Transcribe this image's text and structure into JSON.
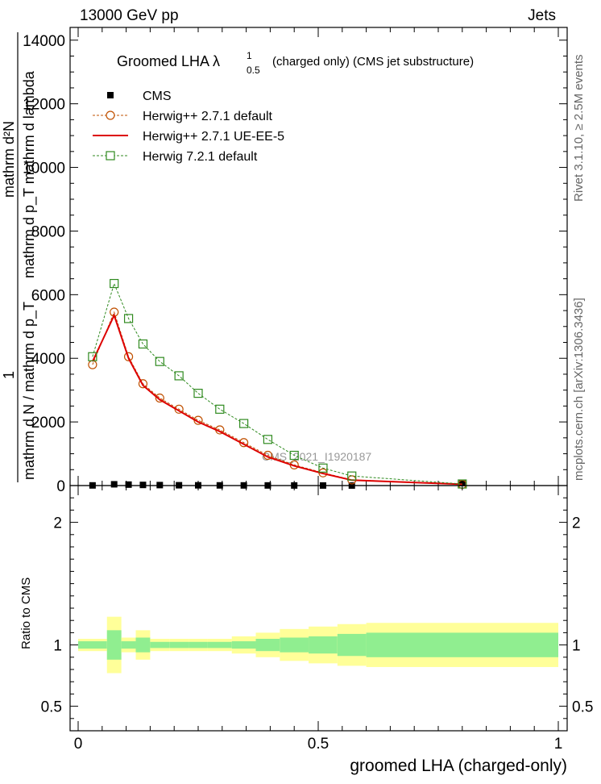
{
  "header": {
    "left": "13000 GeV pp",
    "right": "Jets"
  },
  "side_labels": {
    "rivet": "Rivet 3.1.10, ≥ 2.5M events",
    "mcplots": "mcplots.cern.ch [arXiv:1306.3436]"
  },
  "chart_data": [
    {
      "type": "line",
      "title": "Groomed LHA  λ",
      "title_sup": "1",
      "title_sub": "0.5",
      "title_suffix": "(charged only) (CMS jet substructure)",
      "ylabel_top": "mathrm d²N",
      "ylabel_bottom": "mathrm d p_T mathrm d lambda",
      "ylabel_prefix_one": "1",
      "ylabel_prefix_bottom": "mathrm d N / mathrm d p_T",
      "xlim": [
        0,
        1
      ],
      "ylim": [
        0,
        14400
      ],
      "yticks": [
        0,
        2000,
        4000,
        6000,
        8000,
        10000,
        12000,
        14000
      ],
      "ytick_labels": [
        "0",
        "2000",
        "4000",
        "6000",
        "8000",
        "10000",
        "12000",
        "14000"
      ],
      "watermark": "CMS_2021_I1920187",
      "legend_position": "top-left",
      "x": [
        0.03,
        0.075,
        0.105,
        0.135,
        0.17,
        0.21,
        0.25,
        0.295,
        0.345,
        0.395,
        0.45,
        0.51,
        0.57,
        0.8
      ],
      "series": [
        {
          "name": "CMS",
          "color": "#000000",
          "marker": "square-filled",
          "values": [
            5,
            40,
            30,
            20,
            15,
            10,
            8,
            6,
            5,
            4,
            3,
            2,
            1,
            80
          ]
        },
        {
          "name": "Herwig++ 2.7.1 default",
          "color": "#c05000",
          "marker": "circle-open",
          "dash": "3,2",
          "values": [
            3800,
            5450,
            4050,
            3200,
            2750,
            2400,
            2050,
            1750,
            1350,
            950,
            650,
            400,
            180,
            40
          ]
        },
        {
          "name": "Herwig++ 2.7.1 UE-EE-5",
          "color": "#dd0000",
          "marker": "none",
          "dash": "",
          "values": [
            3900,
            5350,
            4000,
            3150,
            2700,
            2350,
            2000,
            1700,
            1300,
            900,
            620,
            380,
            170,
            40
          ]
        },
        {
          "name": "Herwig 7.2.1 default",
          "color": "#2f8a1f",
          "marker": "square-open",
          "dash": "3,2",
          "values": [
            4050,
            6350,
            5250,
            4450,
            3900,
            3450,
            2900,
            2400,
            1950,
            1450,
            950,
            550,
            300,
            50
          ]
        }
      ]
    },
    {
      "type": "area",
      "ylabel": "Ratio to CMS",
      "xlabel": "groomed LHA (charged-only)",
      "xlim": [
        0,
        1
      ],
      "ylim": [
        0.3,
        2.3
      ],
      "yticks": [
        0.5,
        1,
        2
      ],
      "ytick_labels": [
        "0.5",
        "1",
        "2"
      ],
      "xticks": [
        0,
        0.5,
        1
      ],
      "xtick_labels": [
        "0",
        "0.5",
        "1"
      ],
      "bins": [
        0,
        0.06,
        0.09,
        0.12,
        0.15,
        0.19,
        0.23,
        0.27,
        0.32,
        0.37,
        0.42,
        0.48,
        0.54,
        0.6,
        1.0
      ],
      "inner_color": "#90ee90",
      "outer_color": "#ffff99",
      "inner_halfwidth": [
        0.03,
        0.12,
        0.03,
        0.06,
        0.025,
        0.025,
        0.025,
        0.025,
        0.03,
        0.05,
        0.06,
        0.07,
        0.09,
        0.1
      ],
      "outer_halfwidth": [
        0.05,
        0.23,
        0.06,
        0.12,
        0.05,
        0.05,
        0.05,
        0.05,
        0.07,
        0.1,
        0.13,
        0.15,
        0.17,
        0.18
      ]
    }
  ]
}
